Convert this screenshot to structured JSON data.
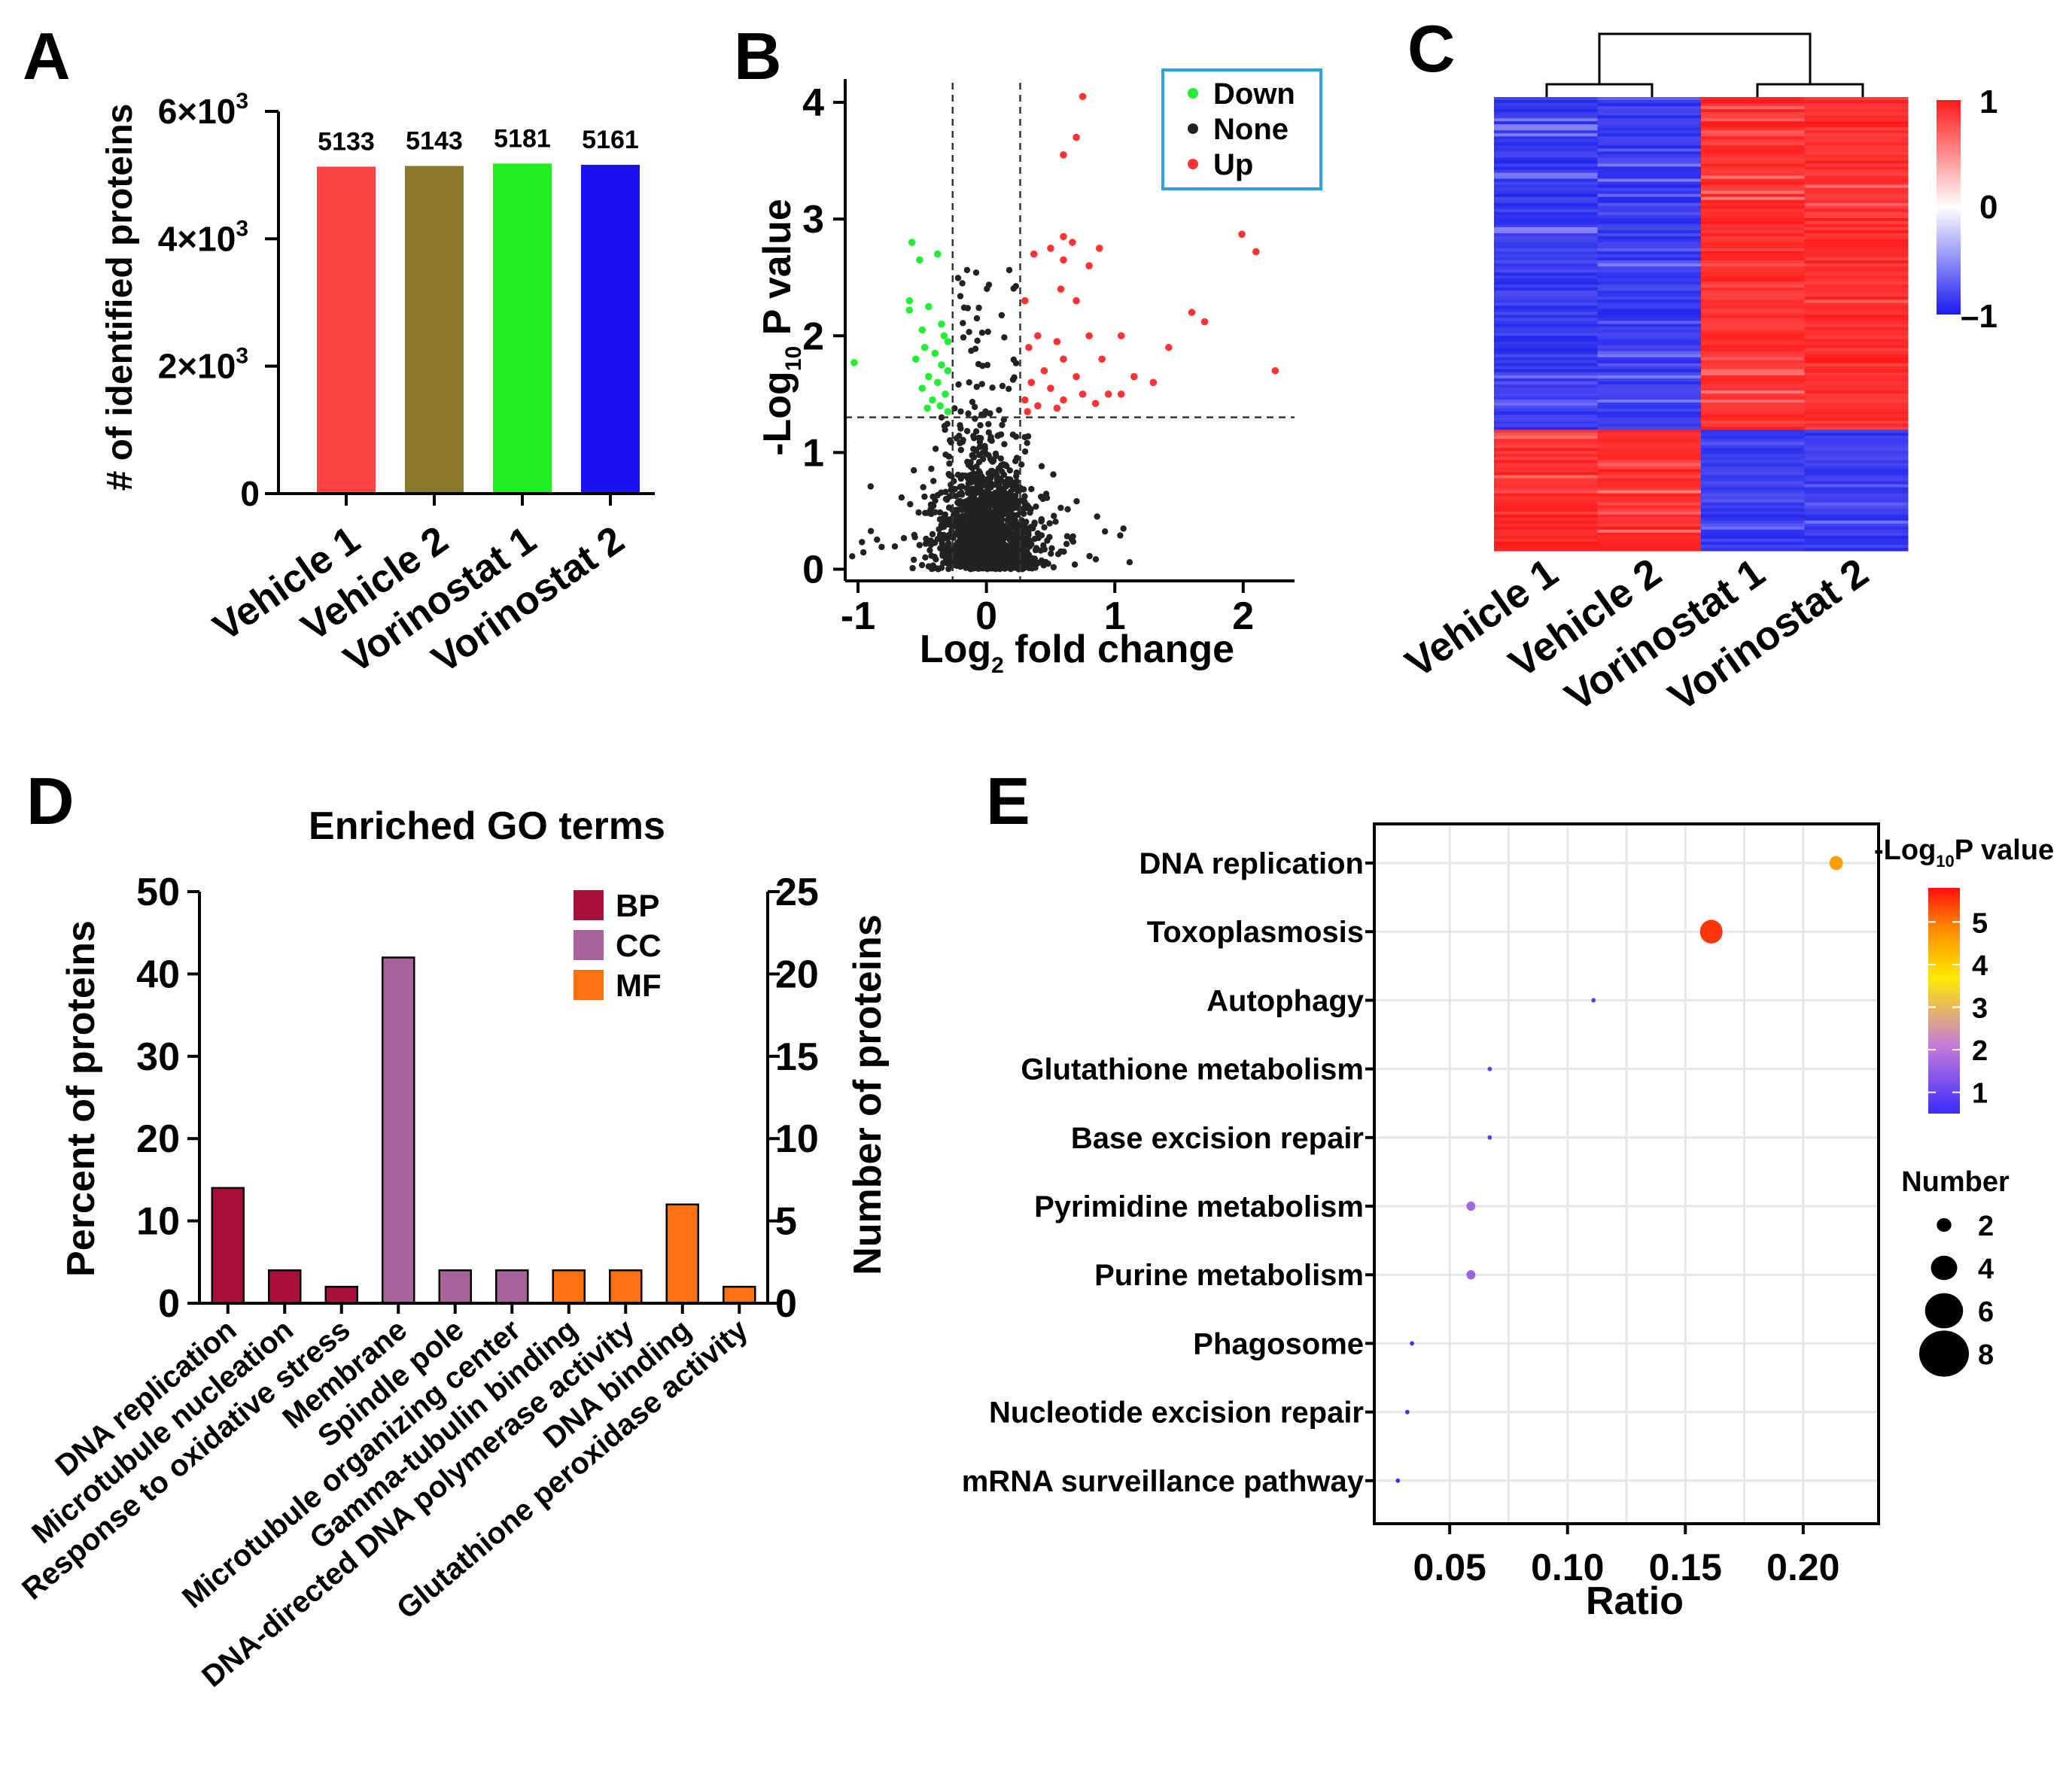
{
  "colors": {
    "vehicle1": "#ff4444",
    "vehicle2": "#8b7a2e",
    "vorinostat1": "#22ee22",
    "vorinostat2": "#1a12f0",
    "down": "#22ee33",
    "none": "#222222",
    "up": "#ff3333",
    "bp": "#a8103a",
    "cc": "#a8649a",
    "mf": "#ff7010",
    "heat_high": "#ff1a1a",
    "heat_low": "#2626ee",
    "legend_box": "#29a7e0"
  },
  "panels": {
    "A": {
      "letter": "A",
      "chart_data": {
        "type": "bar",
        "categories": [
          "Vehicle 1",
          "Vehicle 2",
          "Vorinostat 1",
          "Vorinostat 2"
        ],
        "values": [
          5133,
          5143,
          5181,
          5161
        ],
        "value_labels": [
          "5133",
          "5143",
          "5181",
          "5161"
        ],
        "ylabel": "# of identified proteins",
        "ylim": [
          0,
          6000
        ],
        "yticks": [
          {
            "value": 0,
            "base": "0",
            "exp": ""
          },
          {
            "value": 2000,
            "base": "2×10",
            "exp": "3"
          },
          {
            "value": 4000,
            "base": "4×10",
            "exp": "3"
          },
          {
            "value": 6000,
            "base": "6×10",
            "exp": "3"
          }
        ]
      }
    },
    "B": {
      "letter": "B",
      "chart_data": {
        "type": "scatter",
        "xlabel_main": "Log",
        "xlabel_sub": "2",
        "xlabel_tail": " fold change",
        "ylabel_main": "-Log",
        "ylabel_sub": "10",
        "ylabel_tail": " P value",
        "xlim": [
          -1.1,
          2.4
        ],
        "ylim": [
          -0.1,
          4.2
        ],
        "xticks": [
          -1,
          0,
          1,
          2
        ],
        "yticks": [
          0,
          1,
          2,
          3,
          4
        ],
        "thresholds": {
          "x": [
            -0.263,
            0.263
          ],
          "y": 1.301
        },
        "legend": [
          {
            "label": "Down",
            "color_key": "down"
          },
          {
            "label": "None",
            "color_key": "none"
          },
          {
            "label": "Up",
            "color_key": "up"
          }
        ],
        "series": [
          {
            "name": "Up",
            "points": [
              [
                0.75,
                4.05
              ],
              [
                0.7,
                3.7
              ],
              [
                0.6,
                3.55
              ],
              [
                0.6,
                2.85
              ],
              [
                0.67,
                2.8
              ],
              [
                0.5,
                2.75
              ],
              [
                0.88,
                2.75
              ],
              [
                0.37,
                2.7
              ],
              [
                0.6,
                2.65
              ],
              [
                0.8,
                2.6
              ],
              [
                1.99,
                2.87
              ],
              [
                2.1,
                2.72
              ],
              [
                0.3,
                2.3
              ],
              [
                0.58,
                2.4
              ],
              [
                0.7,
                2.3
              ],
              [
                1.05,
                2.0
              ],
              [
                1.6,
                2.2
              ],
              [
                1.7,
                2.12
              ],
              [
                0.4,
                2.0
              ],
              [
                0.55,
                1.95
              ],
              [
                0.8,
                2.0
              ],
              [
                0.33,
                1.9
              ],
              [
                0.6,
                1.8
              ],
              [
                0.9,
                1.8
              ],
              [
                1.42,
                1.9
              ],
              [
                1.15,
                1.65
              ],
              [
                2.25,
                1.7
              ],
              [
                0.45,
                1.7
              ],
              [
                0.7,
                1.65
              ],
              [
                1.3,
                1.6
              ],
              [
                0.35,
                1.6
              ],
              [
                0.5,
                1.55
              ],
              [
                0.75,
                1.5
              ],
              [
                0.95,
                1.5
              ],
              [
                1.05,
                1.5
              ],
              [
                0.3,
                1.45
              ],
              [
                0.6,
                1.45
              ],
              [
                0.85,
                1.42
              ],
              [
                0.4,
                1.4
              ],
              [
                0.55,
                1.38
              ],
              [
                0.32,
                1.35
              ]
            ]
          },
          {
            "name": "Down",
            "points": [
              [
                -0.58,
                2.8
              ],
              [
                -0.52,
                2.65
              ],
              [
                -0.38,
                2.7
              ],
              [
                -0.6,
                2.3
              ],
              [
                -0.6,
                2.22
              ],
              [
                -0.45,
                2.25
              ],
              [
                -1.03,
                1.77
              ],
              [
                -0.35,
                2.1
              ],
              [
                -0.5,
                2.05
              ],
              [
                -0.33,
                2.0
              ],
              [
                -0.3,
                1.95
              ],
              [
                -0.48,
                1.9
              ],
              [
                -0.4,
                1.85
              ],
              [
                -0.55,
                1.8
              ],
              [
                -0.35,
                1.75
              ],
              [
                -0.3,
                1.7
              ],
              [
                -0.45,
                1.65
              ],
              [
                -0.38,
                1.6
              ],
              [
                -0.5,
                1.55
              ],
              [
                -0.32,
                1.5
              ],
              [
                -0.42,
                1.45
              ],
              [
                -0.36,
                1.4
              ],
              [
                -0.46,
                1.38
              ],
              [
                -0.3,
                1.35
              ]
            ]
          }
        ],
        "none_count": 1400
      }
    },
    "C": {
      "letter": "C",
      "chart_data": {
        "type": "heatmap",
        "columns": [
          "Vehicle 1",
          "Vehicle 2",
          "Vorinostat 1",
          "Vorinostat 2"
        ],
        "cluster_split_fraction": 0.73,
        "color_scale": {
          "min": -1,
          "mid": 0,
          "max": 1,
          "labels": [
            "1",
            "0",
            "–1"
          ]
        }
      }
    },
    "D": {
      "letter": "D",
      "chart_data": {
        "type": "bar",
        "title": "Enriched GO terms",
        "categories": [
          "DNA replication",
          "Microtubule nucleation",
          "Response to oxidative stress",
          "Membrane",
          "Spindle pole",
          "Microtubule organizing center",
          "Gamma-tubulin binding",
          "DNA-directed DNA polymerase activity",
          "DNA binding",
          "Glutathione peroxidase activity"
        ],
        "groups": [
          "BP",
          "BP",
          "BP",
          "CC",
          "CC",
          "CC",
          "MF",
          "MF",
          "MF",
          "MF"
        ],
        "values": [
          14,
          4,
          2,
          42,
          4,
          4,
          4,
          4,
          12,
          2
        ],
        "ylabel": "Percent of proteins",
        "ylabel_right": "Number of proteins",
        "ylim": [
          0,
          50
        ],
        "ylim_right": [
          0,
          25
        ],
        "yticks": [
          0,
          10,
          20,
          30,
          40,
          50
        ],
        "yticks_right": [
          0,
          5,
          10,
          15,
          20,
          25
        ],
        "legend": [
          {
            "label": "BP",
            "color_key": "bp"
          },
          {
            "label": "CC",
            "color_key": "cc"
          },
          {
            "label": "MF",
            "color_key": "mf"
          }
        ]
      }
    },
    "E": {
      "letter": "E",
      "chart_data": {
        "type": "scatter",
        "categories": [
          "DNA replication",
          "Toxoplasmosis",
          "Autophagy",
          "Glutathione metabolism",
          "Base excision repair",
          "Pyrimidine metabolism",
          "Purine metabolism",
          "Phagosome",
          "Nucleotide excision repair",
          "mRNA surveillance pathway"
        ],
        "ratio": [
          0.214,
          0.161,
          0.111,
          0.067,
          0.067,
          0.059,
          0.059,
          0.034,
          0.032,
          0.028
        ],
        "neg_log10_p": [
          4.6,
          5.5,
          0.8,
          0.9,
          0.8,
          1.7,
          1.6,
          0.6,
          0.6,
          0.5
        ],
        "number": [
          3,
          5,
          1,
          1,
          1,
          2,
          2,
          1,
          1,
          1
        ],
        "xlabel": "Ratio",
        "xlim": [
          0.018,
          0.232
        ],
        "xticks": [
          0.05,
          0.1,
          0.15,
          0.2
        ],
        "xtick_labels": [
          "0.05",
          "0.10",
          "0.15",
          "0.20"
        ],
        "color_legend_title_main": "-Log",
        "color_legend_title_sub": "10",
        "color_legend_title_tail": "P value",
        "color_ticks": [
          1,
          2,
          3,
          4,
          5
        ],
        "color_range": [
          0.5,
          5.8
        ],
        "size_legend_title": "Number",
        "size_legend": [
          2,
          4,
          6,
          8
        ]
      }
    }
  }
}
